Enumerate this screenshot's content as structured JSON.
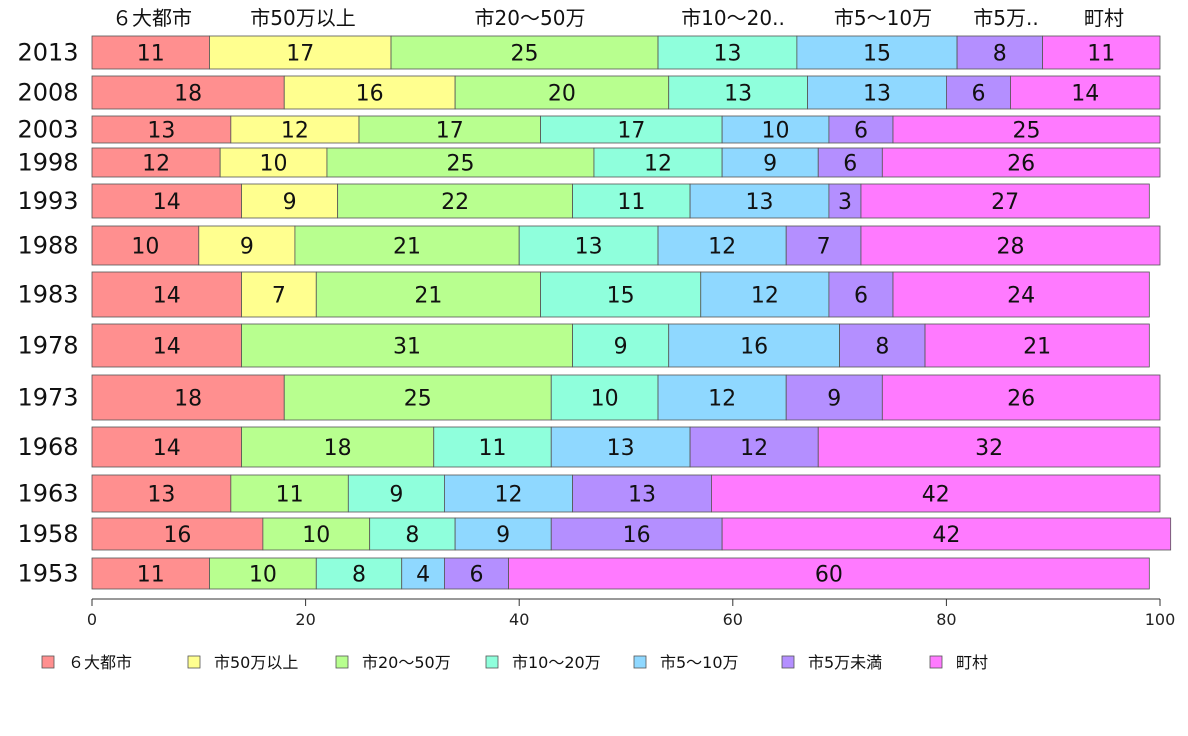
{
  "chart_data": {
    "type": "bar",
    "orientation": "horizontal",
    "stacked": true,
    "categories": [
      "2013",
      "2008",
      "2003",
      "1998",
      "1993",
      "1988",
      "1983",
      "1978",
      "1973",
      "1968",
      "1963",
      "1958",
      "1953"
    ],
    "top_labels": [
      "６大都市",
      "市50万以上",
      "市20～50万",
      "市10～20..",
      "市5～10万",
      "市5万..",
      "町村"
    ],
    "series": [
      {
        "name": "６大都市",
        "color": "#ff8f8f",
        "values": [
          11,
          18,
          13,
          12,
          14,
          10,
          14,
          14,
          18,
          14,
          13,
          16,
          11
        ]
      },
      {
        "name": "市50万以上",
        "color": "#ffff8f",
        "values": [
          17,
          16,
          12,
          10,
          9,
          9,
          7,
          0,
          0,
          0,
          0,
          0,
          0
        ]
      },
      {
        "name": "市20～50万",
        "color": "#b8ff8f",
        "values": [
          25,
          20,
          17,
          25,
          22,
          21,
          21,
          31,
          25,
          18,
          11,
          10,
          10
        ]
      },
      {
        "name": "市10～20万",
        "color": "#8fffdc",
        "values": [
          13,
          13,
          17,
          12,
          11,
          13,
          15,
          9,
          10,
          11,
          9,
          8,
          8
        ]
      },
      {
        "name": "市5～10万",
        "color": "#8fd8ff",
        "values": [
          15,
          13,
          10,
          9,
          13,
          12,
          12,
          16,
          12,
          13,
          12,
          9,
          4
        ]
      },
      {
        "name": "市5万未満",
        "color": "#b48fff",
        "values": [
          8,
          6,
          6,
          6,
          3,
          7,
          6,
          8,
          9,
          12,
          13,
          16,
          6
        ]
      },
      {
        "name": "町村",
        "color": "#ff7aff",
        "values": [
          11,
          14,
          25,
          26,
          27,
          28,
          24,
          21,
          26,
          32,
          42,
          42,
          60
        ]
      }
    ],
    "xlim": [
      0,
      100
    ],
    "xticks": [
      0,
      20,
      40,
      60,
      80,
      100
    ],
    "legend_position": "bottom",
    "grid": false
  }
}
